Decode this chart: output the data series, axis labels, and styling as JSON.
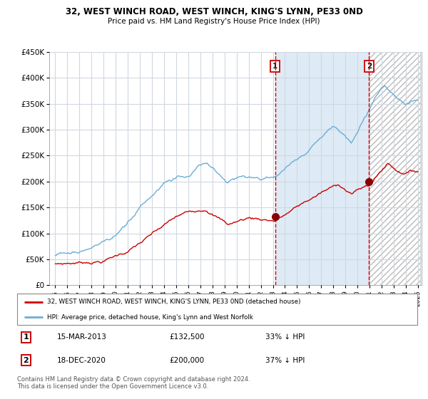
{
  "title": "32, WEST WINCH ROAD, WEST WINCH, KING'S LYNN, PE33 0ND",
  "subtitle": "Price paid vs. HM Land Registry's House Price Index (HPI)",
  "legend_line1": "32, WEST WINCH ROAD, WEST WINCH, KING'S LYNN, PE33 0ND (detached house)",
  "legend_line2": "HPI: Average price, detached house, King's Lynn and West Norfolk",
  "transaction1_date": "15-MAR-2013",
  "transaction1_price": 132500,
  "transaction1_label": "33% ↓ HPI",
  "transaction2_date": "18-DEC-2020",
  "transaction2_price": 200000,
  "transaction2_label": "37% ↓ HPI",
  "footnote": "Contains HM Land Registry data © Crown copyright and database right 2024.\nThis data is licensed under the Open Government Licence v3.0.",
  "hpi_color": "#6baed6",
  "price_color": "#cc0000",
  "marker_color": "#8b0000",
  "bg_plot": "#e8f0f8",
  "grid_color": "#d0d8e0",
  "vline_color": "#cc0000",
  "ylim": [
    0,
    450000
  ],
  "yticks": [
    0,
    50000,
    100000,
    150000,
    200000,
    250000,
    300000,
    350000,
    400000,
    450000
  ],
  "transaction1_year": 2013.2,
  "transaction2_year": 2020.96,
  "shade_between_color": "#deeaf5"
}
